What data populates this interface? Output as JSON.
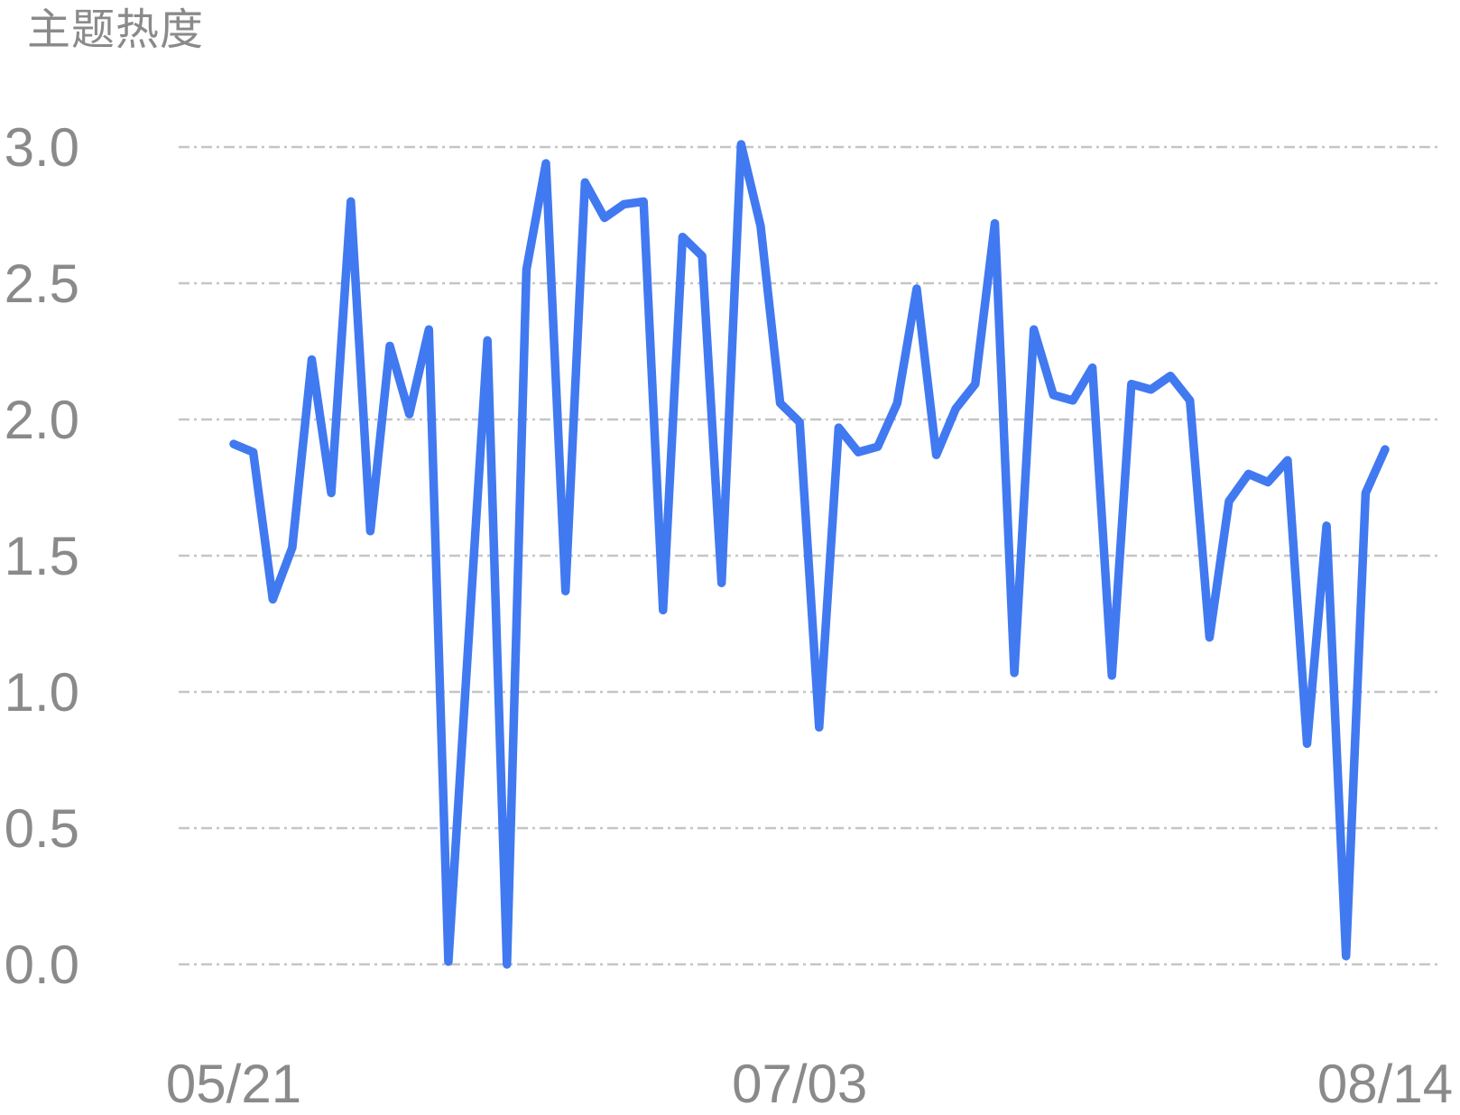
{
  "title": "主题热度",
  "colors": {
    "line": "#4179f0",
    "grid": "#c5c5c5",
    "text": "#8a8a8a",
    "background": "#ffffff"
  },
  "chart_data": {
    "type": "line",
    "title": "主题热度",
    "xlabel": "",
    "ylabel": "",
    "ylim": [
      0.0,
      3.0
    ],
    "y_tick_labels": [
      "3.0",
      "2.5",
      "2.0",
      "1.5",
      "1.0",
      "0.5",
      "0.0"
    ],
    "y_tick_values": [
      3.0,
      2.5,
      2.0,
      1.5,
      1.0,
      0.5,
      0.0
    ],
    "x_tick_labels": [
      "05/21",
      "07/03",
      "08/14"
    ],
    "x_tick_indices": [
      0,
      29,
      59
    ],
    "grid": "horizontal-dash-dot",
    "legend_position": "none",
    "series": [
      {
        "name": "主题热度",
        "values": [
          1.91,
          1.88,
          1.34,
          1.53,
          2.22,
          1.73,
          2.8,
          1.59,
          2.27,
          2.02,
          2.33,
          0.01,
          1.15,
          2.29,
          0.0,
          2.55,
          2.94,
          1.37,
          2.87,
          2.74,
          2.79,
          2.8,
          1.3,
          2.67,
          2.6,
          1.4,
          3.01,
          2.71,
          2.06,
          1.99,
          0.87,
          1.97,
          1.88,
          1.9,
          2.06,
          2.48,
          1.87,
          2.04,
          2.13,
          2.72,
          1.07,
          2.33,
          2.09,
          2.07,
          2.19,
          1.06,
          2.13,
          2.11,
          2.16,
          2.07,
          1.2,
          1.7,
          1.8,
          1.77,
          1.85,
          0.81,
          1.61,
          0.03,
          1.73,
          1.89
        ]
      }
    ]
  }
}
